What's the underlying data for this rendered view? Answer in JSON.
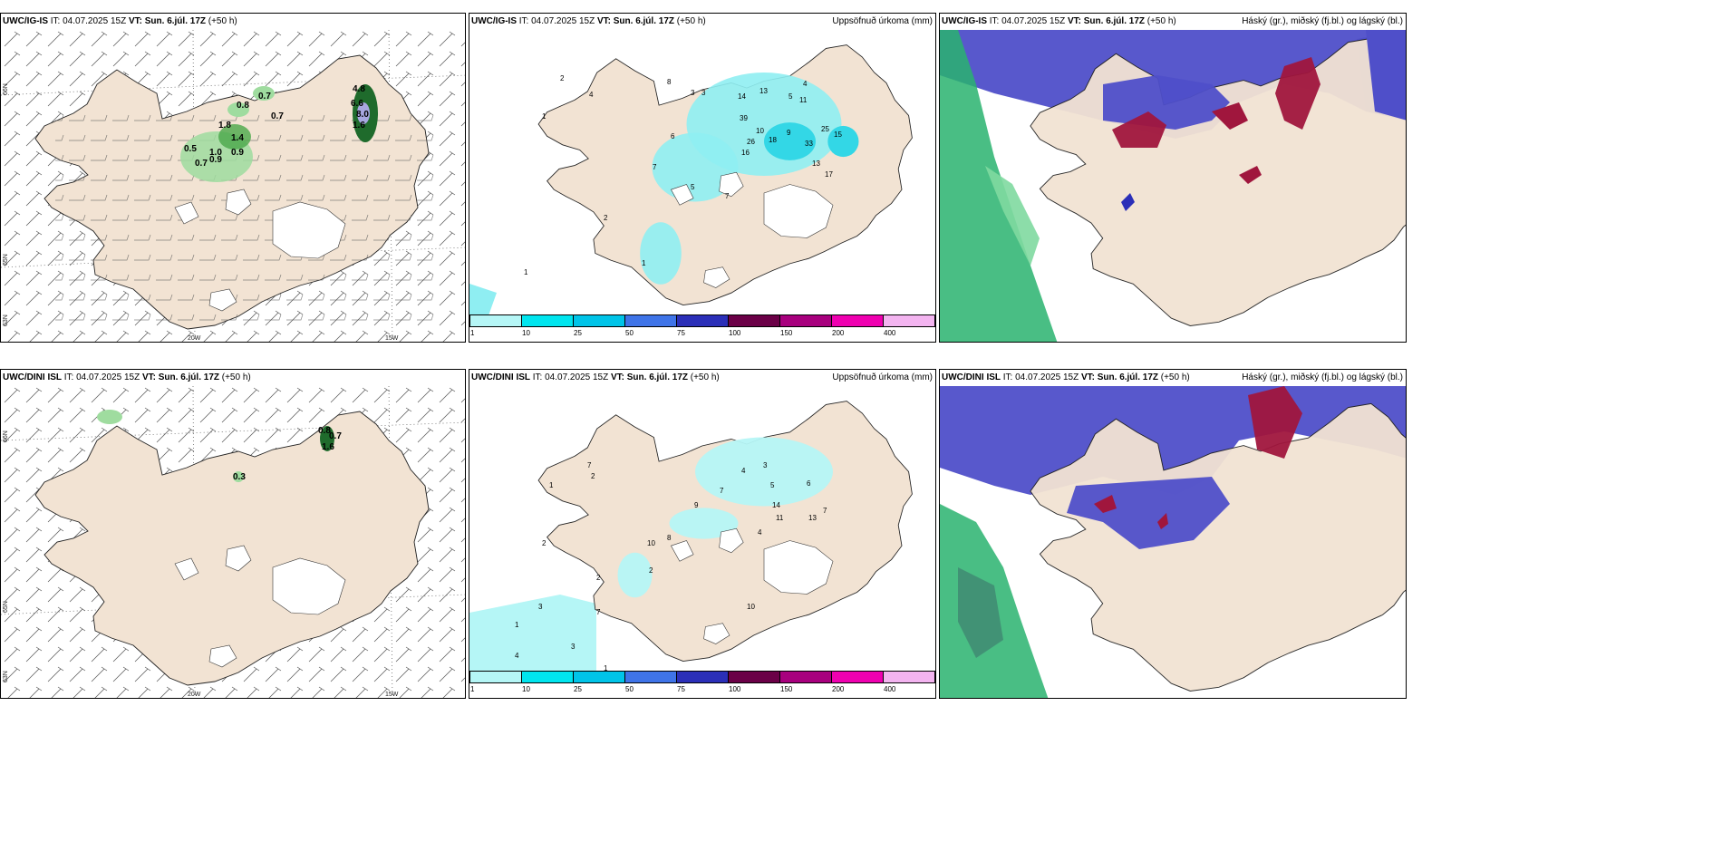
{
  "rows": [
    {
      "model": "UWC/IG-IS",
      "it_label": "IT: 04.07.2025 15Z",
      "vt_label": "VT: Sun. 6.júl. 17Z",
      "lead": "(+50 h)",
      "wind_values": [
        "0.7",
        "0.8",
        "0.7",
        "1.8",
        "1.4",
        "0.5",
        "1.0",
        "0.9",
        "0.9",
        "0.7",
        "4.8",
        "6.6",
        "8.0",
        "1.6"
      ],
      "precip_values": [
        "2",
        "4",
        "8",
        "1",
        "3",
        "3",
        "14",
        "13",
        "5",
        "11",
        "4",
        "39",
        "10",
        "18",
        "16",
        "9",
        "26",
        "33",
        "25",
        "17",
        "15",
        "13",
        "6",
        "7",
        "2",
        "1",
        "7",
        "1",
        "5"
      ]
    },
    {
      "model": "UWC/DINI ISL",
      "it_label": "IT: 04.07.2025 15Z",
      "vt_label": "VT: Sun. 6.júl. 17Z",
      "lead": "(+50 h)",
      "wind_values": [
        "0.8",
        "0.7",
        "1.6",
        "0.3"
      ],
      "precip_values": [
        "2",
        "7",
        "2",
        "1",
        "4",
        "3",
        "9",
        "7",
        "5",
        "14",
        "6",
        "10",
        "8",
        "11",
        "13",
        "7",
        "4",
        "2",
        "3",
        "10",
        "1",
        "4",
        "7",
        "3",
        "2",
        "1"
      ]
    }
  ],
  "precip_title": "Uppsöfnuð úrkoma (mm)",
  "cloud_title": "Háský (gr.), miðský (fj.bl.) og lágský (bl.)",
  "axis_labels": {
    "w20": "20W",
    "w15": "15W",
    "n66": "66N",
    "n65": "65N",
    "n63": "63N"
  },
  "colorbar": {
    "ticks": [
      "1",
      "10",
      "25",
      "50",
      "75",
      "100",
      "150",
      "200",
      "400"
    ],
    "colors": [
      "#b5f6f6",
      "#00e5ee",
      "#00c4e8",
      "#3f74e8",
      "#2b2fb8",
      "#6b0047",
      "#a8007e",
      "#ef00b0",
      "#f3b4f0"
    ]
  },
  "colors": {
    "land": "#f2e3d3",
    "wind": "#3a8a3a",
    "precip": "#8feef2",
    "cloud_high": "#4f4fc9",
    "cloud_mid": "#a0163d",
    "cloud_low": "#29b36e"
  }
}
